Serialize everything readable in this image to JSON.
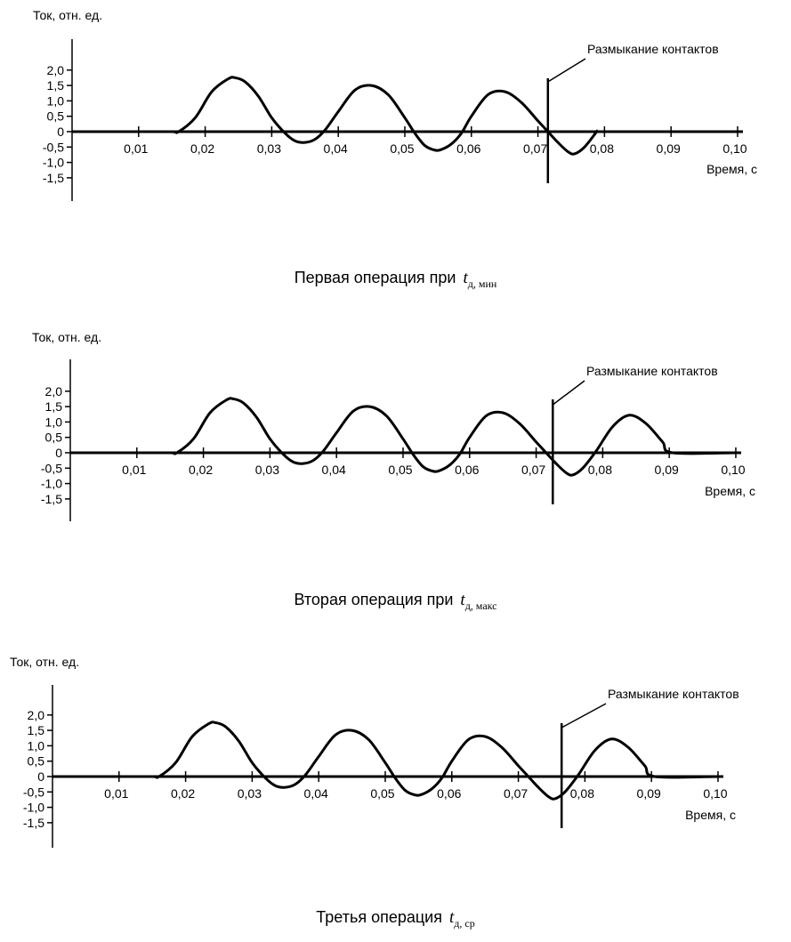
{
  "charts": [
    {
      "caption": "Первая операция при",
      "caption_var": "t",
      "caption_sub": "д, мин",
      "ylabel": "Ток, отн. ед.",
      "xlabel": "Время, с",
      "annotation": "Размыкание контактов"
    },
    {
      "caption": "Вторая операция при",
      "caption_var": "t",
      "caption_sub": "д, макс",
      "ylabel": "Ток, отн. ед.",
      "xlabel": "Время, с",
      "annotation": "Размыкание контактов"
    },
    {
      "caption": "Третья операция",
      "caption_var": "t",
      "caption_sub": "д, ср",
      "ylabel": "Ток, отн. ед.",
      "xlabel": "Время, с",
      "annotation": "Размыкание контактов"
    }
  ],
  "chart_data": [
    {
      "type": "line",
      "xlabel": "Время, с",
      "ylabel": "Ток, отн. ед.",
      "xlim": [
        0,
        0.1
      ],
      "ylim": [
        -1.5,
        2.0
      ],
      "x_ticks": [
        "0,01",
        "0,02",
        "0,03",
        "0,04",
        "0,05",
        "0,06",
        "0,07",
        "0,08",
        "0,09",
        "0,10"
      ],
      "y_ticks": [
        "2,0",
        "1,5",
        "1,0",
        "0,5",
        "0",
        "-0,5",
        "-1,0",
        "-1,5"
      ],
      "annotation": "Размыкание контактов",
      "contact_opening_time": 0.0715,
      "series": [
        {
          "x": [
            0,
            0.005,
            0.01,
            0.015,
            0.016,
            0.0185,
            0.021,
            0.0235,
            0.0245,
            0.026,
            0.028,
            0.03,
            0.032,
            0.0335,
            0.035,
            0.0365,
            0.038,
            0.04,
            0.0425,
            0.045,
            0.0475,
            0.05,
            0.0515,
            0.053,
            0.0545,
            0.0555,
            0.057,
            0.0585,
            0.06,
            0.0625,
            0.065,
            0.0675,
            0.07,
            0.0715,
            0.073,
            0.0745,
            0.0755,
            0.077,
            0.079
          ],
          "y": [
            0,
            0,
            0,
            0,
            0,
            0.45,
            1.3,
            1.72,
            1.75,
            1.62,
            1.15,
            0.45,
            -0.05,
            -0.3,
            -0.35,
            -0.25,
            0.05,
            0.65,
            1.35,
            1.5,
            1.2,
            0.45,
            -0.05,
            -0.45,
            -0.6,
            -0.58,
            -0.4,
            -0.05,
            0.5,
            1.2,
            1.3,
            0.95,
            0.35,
            0,
            -0.35,
            -0.65,
            -0.72,
            -0.5,
            0.05
          ]
        }
      ]
    },
    {
      "type": "line",
      "xlabel": "Время, с",
      "ylabel": "Ток, отн. ед.",
      "xlim": [
        0,
        0.1
      ],
      "ylim": [
        -1.5,
        2.0
      ],
      "x_ticks": [
        "0,01",
        "0,02",
        "0,03",
        "0,04",
        "0,05",
        "0,06",
        "0,07",
        "0,08",
        "0,09",
        "0,10"
      ],
      "y_ticks": [
        "2,0",
        "1,5",
        "1,0",
        "0,5",
        "0",
        "-0,5",
        "-1,0",
        "-1,5"
      ],
      "annotation": "Размыкание контактов",
      "contact_opening_time": 0.0725,
      "series": [
        {
          "x": [
            0,
            0.005,
            0.01,
            0.015,
            0.016,
            0.0185,
            0.021,
            0.0235,
            0.0245,
            0.026,
            0.028,
            0.03,
            0.032,
            0.0335,
            0.035,
            0.0365,
            0.038,
            0.04,
            0.0425,
            0.045,
            0.0475,
            0.05,
            0.0515,
            0.053,
            0.0545,
            0.0555,
            0.057,
            0.0585,
            0.06,
            0.0625,
            0.065,
            0.0675,
            0.07,
            0.0715,
            0.073,
            0.0745,
            0.0755,
            0.077,
            0.079,
            0.0815,
            0.084,
            0.0865,
            0.089,
            0.0905,
            0.1
          ],
          "y": [
            0,
            0,
            0,
            0,
            0,
            0.45,
            1.3,
            1.72,
            1.75,
            1.62,
            1.15,
            0.45,
            -0.05,
            -0.3,
            -0.35,
            -0.25,
            0.05,
            0.65,
            1.35,
            1.5,
            1.2,
            0.45,
            -0.05,
            -0.45,
            -0.6,
            -0.58,
            -0.4,
            -0.05,
            0.5,
            1.2,
            1.3,
            0.95,
            0.35,
            0,
            -0.35,
            -0.65,
            -0.72,
            -0.5,
            0.05,
            0.85,
            1.22,
            0.95,
            0.35,
            0,
            0
          ]
        }
      ]
    },
    {
      "type": "line",
      "xlabel": "Время, с",
      "ylabel": "Ток, отн. ед.",
      "xlim": [
        0,
        0.1
      ],
      "ylim": [
        -1.5,
        2.0
      ],
      "x_ticks": [
        "0,01",
        "0,02",
        "0,03",
        "0,04",
        "0,05",
        "0,06",
        "0,07",
        "0,08",
        "0,09",
        "0,10"
      ],
      "y_ticks": [
        "2,0",
        "1,5",
        "1,0",
        "0,5",
        "0",
        "-0,5",
        "-1,0",
        "-1,5"
      ],
      "annotation": "Размыкание контактов",
      "contact_opening_time": 0.0765,
      "series": [
        {
          "x": [
            0,
            0.005,
            0.01,
            0.015,
            0.016,
            0.0185,
            0.021,
            0.0235,
            0.0245,
            0.026,
            0.028,
            0.03,
            0.032,
            0.0335,
            0.035,
            0.0365,
            0.038,
            0.04,
            0.0425,
            0.045,
            0.0475,
            0.05,
            0.0515,
            0.053,
            0.0545,
            0.0555,
            0.057,
            0.0585,
            0.06,
            0.0625,
            0.065,
            0.0675,
            0.07,
            0.0715,
            0.073,
            0.0745,
            0.0755,
            0.077,
            0.079,
            0.0815,
            0.084,
            0.0865,
            0.089,
            0.0905,
            0.1
          ],
          "y": [
            0,
            0,
            0,
            0,
            0,
            0.45,
            1.3,
            1.72,
            1.75,
            1.62,
            1.15,
            0.45,
            -0.05,
            -0.3,
            -0.35,
            -0.25,
            0.05,
            0.65,
            1.35,
            1.5,
            1.2,
            0.45,
            -0.05,
            -0.45,
            -0.6,
            -0.58,
            -0.4,
            -0.05,
            0.5,
            1.2,
            1.3,
            0.95,
            0.35,
            0,
            -0.35,
            -0.65,
            -0.72,
            -0.5,
            0.05,
            0.85,
            1.22,
            0.95,
            0.35,
            0,
            0
          ]
        }
      ]
    }
  ]
}
